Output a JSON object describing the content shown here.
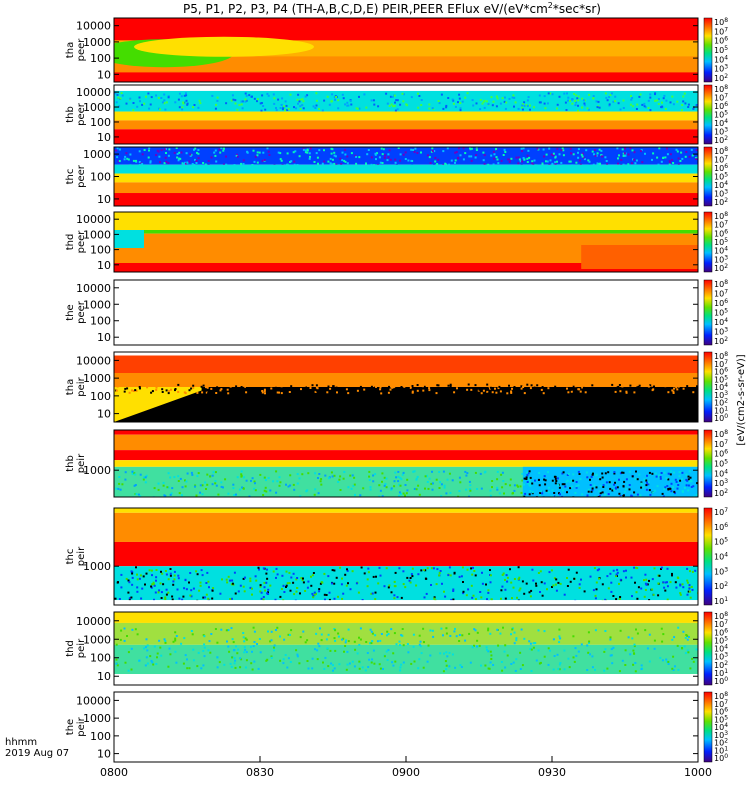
{
  "chart_data": {
    "type": "heatmap",
    "title": "P5, P1, P2, P3, P4 (TH-A,B,C,D,E) PEIR,PEER EFlux eV/(eV*cm",
    "title_sup": "2",
    "title_tail": "*sec*sr)",
    "x_axis": {
      "label_line1": "hhmm",
      "label_line2": "2019 Aug 07",
      "ticks": [
        "0800",
        "0830",
        "0900",
        "0930",
        "1000"
      ],
      "range_minutes": [
        480,
        600
      ]
    },
    "y_scale": "log",
    "units_label": "[eV/(cm2-s-sr-eV)]",
    "panels": [
      {
        "probe": "tha",
        "species": "peer",
        "yticks": [
          "10000",
          "1000",
          "100",
          "10"
        ],
        "has_data": true,
        "palette": "tha_peer"
      },
      {
        "probe": "thb",
        "species": "peer",
        "yticks": [
          "10000",
          "1000",
          "100",
          "10"
        ],
        "has_data": true,
        "palette": "thb_peer"
      },
      {
        "probe": "thc",
        "species": "peer",
        "yticks": [
          "1000",
          "100",
          "10"
        ],
        "has_data": true,
        "palette": "thc_peer"
      },
      {
        "probe": "thd",
        "species": "peer",
        "yticks": [
          "10000",
          "1000",
          "100",
          "10"
        ],
        "has_data": true,
        "palette": "thd_peer"
      },
      {
        "probe": "the",
        "species": "peer",
        "yticks": [
          "10000",
          "1000",
          "100",
          "10"
        ],
        "has_data": false,
        "palette": "none"
      },
      {
        "probe": "tha",
        "species": "peir",
        "yticks": [
          "10000",
          "1000",
          "100",
          "10"
        ],
        "has_data": true,
        "palette": "tha_peir"
      },
      {
        "probe": "thb",
        "species": "peir",
        "yticks": [
          "1000"
        ],
        "has_data": true,
        "palette": "thb_peir"
      },
      {
        "probe": "thc",
        "species": "peir",
        "yticks": [
          "1000"
        ],
        "has_data": true,
        "palette": "thc_peir"
      },
      {
        "probe": "thd",
        "species": "peir",
        "yticks": [
          "10000",
          "1000",
          "100",
          "10"
        ],
        "has_data": true,
        "palette": "thd_peir"
      },
      {
        "probe": "the",
        "species": "peir",
        "yticks": [
          "10000",
          "1000",
          "100",
          "10"
        ],
        "has_data": false,
        "palette": "none"
      }
    ],
    "colorbars": [
      {
        "exponents": [
          "8",
          "7",
          "6",
          "5",
          "4",
          "3",
          "2"
        ]
      },
      {
        "exponents": [
          "8",
          "7",
          "6",
          "5",
          "4",
          "3",
          "2"
        ]
      },
      {
        "exponents": [
          "8",
          "7",
          "6",
          "5",
          "4",
          "3",
          "2"
        ]
      },
      {
        "exponents": [
          "8",
          "7",
          "6",
          "5",
          "4",
          "3",
          "2"
        ]
      },
      {
        "exponents": [
          "8",
          "7",
          "6",
          "5",
          "4",
          "3",
          "2"
        ]
      },
      {
        "exponents": [
          "8",
          "7",
          "6",
          "5",
          "4",
          "3",
          "2",
          "1",
          "0"
        ]
      },
      {
        "exponents": [
          "8",
          "7",
          "6",
          "5",
          "4",
          "3",
          "2"
        ]
      },
      {
        "exponents": [
          "7",
          "6",
          "5",
          "4",
          "3",
          "2",
          "1"
        ]
      },
      {
        "exponents": [
          "8",
          "7",
          "6",
          "5",
          "4",
          "3",
          "2",
          "1",
          "0"
        ]
      },
      {
        "exponents": [
          "8",
          "7",
          "6",
          "5",
          "4",
          "3",
          "2",
          "1",
          "0"
        ]
      }
    ],
    "colors": {
      "red": "#ff0000",
      "dark_red": "#b20000",
      "orange": "#ff8c00",
      "yellow": "#ffe000",
      "green": "#44dd00",
      "cyan": "#00e0e0",
      "blue": "#0040ff",
      "purple": "#7000c0",
      "black": "#000000"
    }
  }
}
